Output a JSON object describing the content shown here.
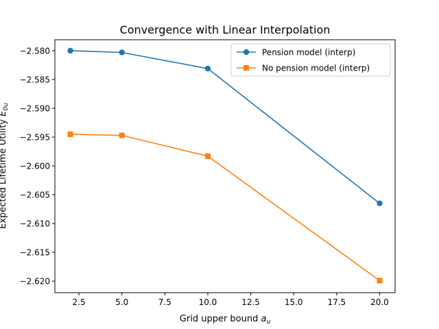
{
  "chart_data": {
    "type": "line",
    "title": "Convergence with Linear Interpolation",
    "xlabel_main": "Grid upper bound ",
    "xlabel_var": "a",
    "xlabel_sub": "u",
    "ylabel_main": "Expected Lifetime Utility ",
    "ylabel_var": "E",
    "ylabel_sub": "0u",
    "xlim": [
      1.1,
      20.9
    ],
    "ylim": [
      -2.622,
      -2.5781
    ],
    "xticks": [
      2.5,
      5.0,
      7.5,
      10.0,
      12.5,
      15.0,
      17.5,
      20.0
    ],
    "xtick_labels": [
      "2.5",
      "5.0",
      "7.5",
      "10.0",
      "12.5",
      "15.0",
      "17.5",
      "20.0"
    ],
    "yticks": [
      -2.58,
      -2.585,
      -2.59,
      -2.595,
      -2.6,
      -2.605,
      -2.61,
      -2.615,
      -2.62
    ],
    "ytick_labels": [
      "−2.580",
      "−2.585",
      "−2.590",
      "−2.595",
      "−2.600",
      "−2.605",
      "−2.610",
      "−2.615",
      "−2.620"
    ],
    "grid": false,
    "legend_position": "top-right",
    "x": [
      2,
      5,
      10,
      20
    ],
    "series": [
      {
        "name": "Pension model (interp)",
        "values": [
          -2.58,
          -2.5803,
          -2.5831,
          -2.6065
        ],
        "color": "#1f77b4",
        "marker": "circle"
      },
      {
        "name": "No pension model (interp)",
        "values": [
          -2.5945,
          -2.5947,
          -2.5983,
          -2.6199
        ],
        "color": "#ff7f0e",
        "marker": "square"
      }
    ]
  }
}
